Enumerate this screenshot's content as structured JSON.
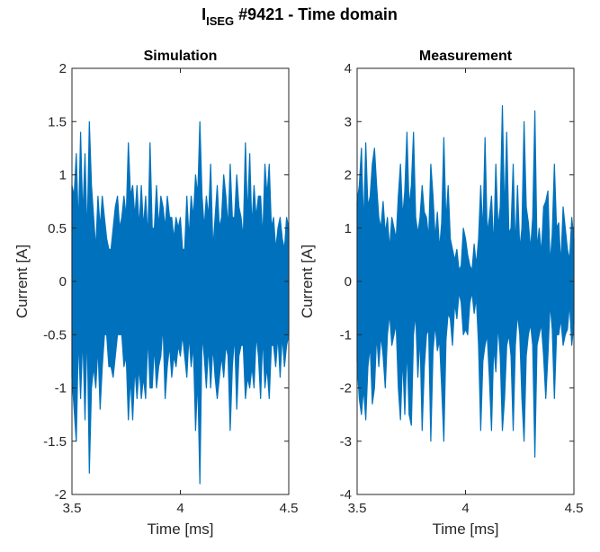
{
  "figure": {
    "title_main": "I",
    "title_sub": "ISEG",
    "title_rest": " #9421 - Time domain"
  },
  "colors": {
    "series": "#0072BD",
    "axis": "#262626",
    "background": "#ffffff"
  },
  "chart_data": [
    {
      "type": "line",
      "title": "Simulation",
      "xlabel": "Time [ms]",
      "ylabel": "Current [A]",
      "xlim": [
        3.5,
        4.5
      ],
      "ylim": [
        -2,
        2
      ],
      "xticks": [
        3.5,
        4,
        4.5
      ],
      "xtick_labels": [
        "3.5",
        "4",
        "4.5"
      ],
      "yticks": [
        -2,
        -1.5,
        -1,
        -0.5,
        0,
        0.5,
        1,
        1.5,
        2
      ],
      "ytick_labels": [
        "-2",
        "-1.5",
        "-1",
        "-0.5",
        "0",
        "0.5",
        "1",
        "1.5",
        "2"
      ],
      "grid": false,
      "series": [
        {
          "style": "dense oscillation (filled envelope)",
          "x": [
            3.5,
            3.51,
            3.52,
            3.53,
            3.54,
            3.55,
            3.56,
            3.57,
            3.58,
            3.59,
            3.6,
            3.61,
            3.62,
            3.63,
            3.64,
            3.65,
            3.66,
            3.67,
            3.68,
            3.69,
            3.7,
            3.71,
            3.72,
            3.73,
            3.74,
            3.75,
            3.76,
            3.77,
            3.78,
            3.79,
            3.8,
            3.81,
            3.82,
            3.83,
            3.84,
            3.85,
            3.86,
            3.87,
            3.88,
            3.89,
            3.9,
            3.91,
            3.92,
            3.93,
            3.94,
            3.95,
            3.96,
            3.97,
            3.98,
            3.99,
            4.0,
            4.01,
            4.02,
            4.03,
            4.04,
            4.05,
            4.06,
            4.07,
            4.08,
            4.09,
            4.1,
            4.11,
            4.12,
            4.13,
            4.14,
            4.15,
            4.16,
            4.17,
            4.18,
            4.19,
            4.2,
            4.21,
            4.22,
            4.23,
            4.24,
            4.25,
            4.26,
            4.27,
            4.28,
            4.29,
            4.3,
            4.31,
            4.32,
            4.33,
            4.34,
            4.35,
            4.36,
            4.37,
            4.38,
            4.39,
            4.4,
            4.41,
            4.42,
            4.43,
            4.44,
            4.45,
            4.46,
            4.47,
            4.48,
            4.49,
            4.5
          ],
          "upper": [
            0.9,
            0.8,
            1.2,
            0.5,
            1.4,
            0.6,
            1.2,
            0.4,
            1.5,
            0.9,
            0.6,
            0.3,
            0.8,
            0.5,
            0.8,
            0.6,
            0.4,
            0.3,
            0.3,
            0.5,
            0.7,
            0.8,
            0.5,
            0.6,
            0.8,
            0.6,
            1.3,
            0.8,
            0.9,
            0.6,
            0.9,
            0.5,
            0.9,
            0.5,
            0.8,
            0.4,
            1.3,
            0.5,
            0.5,
            0.9,
            0.5,
            0.8,
            0.7,
            0.5,
            0.8,
            0.6,
            0.6,
            0.4,
            0.6,
            0.5,
            0.6,
            0.3,
            0.3,
            0.8,
            0.4,
            0.8,
            0.6,
            1.0,
            0.8,
            1.5,
            0.8,
            0.5,
            0.8,
            0.6,
            1.1,
            0.3,
            0.6,
            0.9,
            0.5,
            0.6,
            1.0,
            0.8,
            0.5,
            1.1,
            0.6,
            0.6,
            1.0,
            0.7,
            0.6,
            0.4,
            1.3,
            0.6,
            1.2,
            0.5,
            0.9,
            0.6,
            0.8,
            0.8,
            0.4,
            1.1,
            0.8,
            1.1,
            0.5,
            0.6,
            0.3,
            0.5,
            0.6,
            0.4,
            0.3,
            0.6,
            0.5
          ],
          "lower": [
            -0.9,
            -1.2,
            -1.5,
            -0.5,
            -1.1,
            -0.5,
            -1.3,
            -0.4,
            -1.8,
            -1.0,
            -0.8,
            -1.0,
            -0.6,
            -1.2,
            -0.8,
            -0.5,
            -0.5,
            -0.8,
            -0.8,
            -0.9,
            -0.7,
            -0.5,
            -0.5,
            -0.5,
            -0.8,
            -0.7,
            -1.3,
            -0.9,
            -1.3,
            -0.8,
            -1.1,
            -0.8,
            -1.1,
            -0.9,
            -1.1,
            -0.5,
            -1.0,
            -1.0,
            -0.6,
            -1.0,
            -0.8,
            -0.7,
            -0.4,
            -1.1,
            -0.8,
            -0.6,
            -0.9,
            -0.7,
            -0.8,
            -0.6,
            -0.7,
            -0.5,
            -0.7,
            -0.9,
            -0.5,
            -0.8,
            -0.6,
            -1.4,
            -0.9,
            -1.9,
            -0.5,
            -0.7,
            -1.0,
            -0.6,
            -1.0,
            -0.6,
            -0.9,
            -1.1,
            -0.9,
            -0.7,
            -0.9,
            -0.6,
            -0.7,
            -1.4,
            -0.8,
            -0.5,
            -1.2,
            -0.7,
            -0.6,
            -0.6,
            -1.1,
            -0.9,
            -1.0,
            -0.8,
            -1.0,
            -0.5,
            -0.7,
            -1.1,
            -0.5,
            -1.0,
            -0.8,
            -1.1,
            -0.6,
            -0.6,
            -0.8,
            -0.5,
            -0.9,
            -0.5,
            -0.8,
            -0.6,
            -0.5
          ]
        }
      ]
    },
    {
      "type": "line",
      "title": "Measurement",
      "xlabel": "Time [ms]",
      "ylabel": "Current [A]",
      "xlim": [
        3.5,
        4.5
      ],
      "ylim": [
        -4,
        4
      ],
      "xticks": [
        3.5,
        4,
        4.5
      ],
      "xtick_labels": [
        "3.5",
        "4",
        "4.5"
      ],
      "yticks": [
        -4,
        -3,
        -2,
        -1,
        0,
        1,
        2,
        3,
        4
      ],
      "ytick_labels": [
        "-4",
        "-3",
        "-2",
        "-1",
        "0",
        "1",
        "2",
        "3",
        "4"
      ],
      "grid": false,
      "series": [
        {
          "style": "dense oscillation (filled envelope)",
          "x": [
            3.5,
            3.51,
            3.52,
            3.53,
            3.54,
            3.55,
            3.56,
            3.57,
            3.58,
            3.59,
            3.6,
            3.61,
            3.62,
            3.63,
            3.64,
            3.65,
            3.66,
            3.67,
            3.68,
            3.69,
            3.7,
            3.71,
            3.72,
            3.73,
            3.74,
            3.75,
            3.76,
            3.77,
            3.78,
            3.79,
            3.8,
            3.81,
            3.82,
            3.83,
            3.84,
            3.85,
            3.86,
            3.87,
            3.88,
            3.89,
            3.9,
            3.91,
            3.92,
            3.93,
            3.94,
            3.95,
            3.96,
            3.97,
            3.98,
            3.99,
            4.0,
            4.01,
            4.02,
            4.03,
            4.04,
            4.05,
            4.06,
            4.07,
            4.08,
            4.09,
            4.1,
            4.11,
            4.12,
            4.13,
            4.14,
            4.15,
            4.16,
            4.17,
            4.18,
            4.19,
            4.2,
            4.21,
            4.22,
            4.23,
            4.24,
            4.25,
            4.26,
            4.27,
            4.28,
            4.29,
            4.3,
            4.31,
            4.32,
            4.33,
            4.34,
            4.35,
            4.36,
            4.37,
            4.38,
            4.39,
            4.4,
            4.41,
            4.42,
            4.43,
            4.44,
            4.45,
            4.46,
            4.47,
            4.48,
            4.49,
            4.5
          ],
          "upper": [
            1.5,
            1.8,
            2.5,
            1.0,
            2.6,
            1.4,
            1.6,
            2.2,
            2.5,
            1.8,
            1.2,
            1.0,
            1.5,
            0.9,
            1.2,
            0.6,
            1.2,
            1.0,
            0.8,
            1.6,
            2.2,
            1.2,
            1.7,
            2.8,
            1.4,
            1.8,
            2.8,
            1.2,
            0.9,
            1.2,
            1.8,
            1.3,
            1.2,
            0.8,
            2.2,
            1.6,
            0.8,
            1.3,
            0.6,
            1.1,
            2.7,
            1.1,
            1.8,
            0.8,
            0.6,
            0.4,
            0.6,
            0.2,
            0.3,
            1.0,
            0.8,
            0.5,
            0.3,
            0.2,
            0.7,
            0.3,
            0.8,
            1.8,
            0.9,
            2.7,
            0.9,
            1.2,
            1.6,
            0.6,
            2.2,
            1.0,
            1.4,
            3.3,
            1.2,
            2.8,
            0.9,
            1.0,
            2.2,
            0.6,
            1.8,
            0.6,
            1.0,
            3.0,
            1.4,
            1.1,
            0.6,
            1.2,
            3.2,
            0.6,
            1.0,
            0.5,
            1.4,
            1.5,
            1.7,
            0.3,
            0.9,
            2.2,
            1.0,
            1.1,
            0.3,
            1.4,
            1.0,
            0.6,
            0.4,
            1.2,
            0.8
          ],
          "lower": [
            -1.5,
            -2.2,
            -2.5,
            -2.0,
            -2.6,
            -1.6,
            -1.2,
            -2.3,
            -2.0,
            -1.0,
            -1.6,
            -1.0,
            -1.4,
            -2.0,
            -1.0,
            -0.6,
            -1.2,
            -1.0,
            -0.8,
            -2.0,
            -2.6,
            -1.4,
            -2.5,
            -1.2,
            -2.5,
            -2.7,
            -1.0,
            -0.6,
            -1.8,
            -1.0,
            -2.8,
            -1.6,
            -1.0,
            -0.9,
            -3.0,
            -1.3,
            -0.8,
            -1.3,
            -1.1,
            -2.0,
            -3.0,
            -1.1,
            -0.6,
            -0.7,
            -1.2,
            -0.4,
            -0.7,
            -0.2,
            -0.4,
            -1.0,
            -0.9,
            -1.0,
            -0.4,
            -0.2,
            -0.6,
            -0.3,
            -1.2,
            -2.8,
            -1.5,
            -1.2,
            -1.0,
            -1.8,
            -2.8,
            -1.2,
            -1.7,
            -0.8,
            -1.4,
            -2.8,
            -2.2,
            -1.2,
            -1.0,
            -1.4,
            -2.8,
            -1.2,
            -0.6,
            -1.0,
            -2.2,
            -3.0,
            -1.4,
            -1.0,
            -0.8,
            -1.2,
            -3.3,
            -1.2,
            -1.0,
            -0.8,
            -1.4,
            -2.2,
            -1.4,
            -0.4,
            -0.9,
            -2.2,
            -1.0,
            -1.0,
            -0.7,
            -1.2,
            -1.0,
            -0.9,
            -0.4,
            -1.2,
            -0.8
          ]
        }
      ]
    }
  ]
}
